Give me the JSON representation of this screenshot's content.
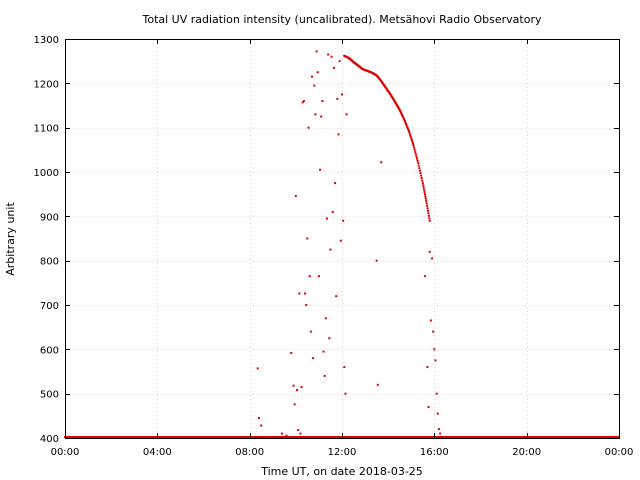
{
  "chart_data": {
    "type": "scatter",
    "title": "Total UV radiation intensity (uncalibrated). Metsähovi Radio Observatory",
    "xlabel": "Time UT, on date 2018-03-25",
    "ylabel": "Arbitrary unit",
    "xlim_hours": [
      0,
      24
    ],
    "ylim": [
      400,
      1300
    ],
    "x_ticks": [
      {
        "value": 0,
        "label": "00:00"
      },
      {
        "value": 4,
        "label": "04:00"
      },
      {
        "value": 8,
        "label": "08:00"
      },
      {
        "value": 12,
        "label": "12:00"
      },
      {
        "value": 16,
        "label": "16:00"
      },
      {
        "value": 20,
        "label": "20:00"
      },
      {
        "value": 24,
        "label": "00:00"
      }
    ],
    "y_ticks": [
      400,
      500,
      600,
      700,
      800,
      900,
      1000,
      1100,
      1200,
      1300
    ],
    "grid": true,
    "marker_color": "#dd0000",
    "series": [
      {
        "baseline": {
          "from_hour": 0,
          "to_hour": 24,
          "value": 400
        },
        "main_curve": [
          [
            12.1,
            1262
          ],
          [
            12.3,
            1257
          ],
          [
            12.5,
            1248
          ],
          [
            12.7,
            1240
          ],
          [
            12.9,
            1232
          ],
          [
            13.1,
            1228
          ],
          [
            13.3,
            1224
          ],
          [
            13.5,
            1218
          ],
          [
            13.7,
            1205
          ],
          [
            13.9,
            1190
          ],
          [
            14.1,
            1175
          ],
          [
            14.3,
            1158
          ],
          [
            14.5,
            1140
          ],
          [
            14.7,
            1118
          ],
          [
            14.9,
            1092
          ],
          [
            15.1,
            1060
          ],
          [
            15.3,
            1020
          ],
          [
            15.5,
            975
          ],
          [
            15.65,
            935
          ],
          [
            15.8,
            890
          ]
        ],
        "scatter_points": [
          [
            8.35,
            557
          ],
          [
            8.4,
            445
          ],
          [
            8.5,
            428
          ],
          [
            9.4,
            410
          ],
          [
            9.6,
            405
          ],
          [
            9.8,
            592
          ],
          [
            9.9,
            518
          ],
          [
            9.95,
            476
          ],
          [
            10.0,
            946
          ],
          [
            10.05,
            508
          ],
          [
            10.1,
            418
          ],
          [
            10.15,
            726
          ],
          [
            10.2,
            410
          ],
          [
            10.25,
            515
          ],
          [
            10.3,
            1157
          ],
          [
            10.35,
            1160
          ],
          [
            10.4,
            726
          ],
          [
            10.45,
            700
          ],
          [
            10.5,
            850
          ],
          [
            10.55,
            1100
          ],
          [
            10.6,
            765
          ],
          [
            10.65,
            640
          ],
          [
            10.7,
            1215
          ],
          [
            10.75,
            580
          ],
          [
            10.8,
            1195
          ],
          [
            10.85,
            1130
          ],
          [
            10.9,
            1272
          ],
          [
            10.95,
            1225
          ],
          [
            11.0,
            765
          ],
          [
            11.05,
            1005
          ],
          [
            11.1,
            1125
          ],
          [
            11.15,
            1160
          ],
          [
            11.2,
            595
          ],
          [
            11.25,
            540
          ],
          [
            11.3,
            670
          ],
          [
            11.35,
            895
          ],
          [
            11.4,
            1265
          ],
          [
            11.45,
            625
          ],
          [
            11.5,
            825
          ],
          [
            11.55,
            1260
          ],
          [
            11.6,
            910
          ],
          [
            11.65,
            1235
          ],
          [
            11.7,
            975
          ],
          [
            11.75,
            720
          ],
          [
            11.8,
            1165
          ],
          [
            11.85,
            1085
          ],
          [
            11.9,
            1250
          ],
          [
            11.95,
            845
          ],
          [
            12.0,
            1175
          ],
          [
            12.05,
            890
          ],
          [
            12.1,
            560
          ],
          [
            12.15,
            500
          ],
          [
            12.2,
            1130
          ],
          [
            13.5,
            800
          ],
          [
            13.55,
            520
          ],
          [
            13.7,
            1022
          ],
          [
            15.6,
            765
          ],
          [
            15.7,
            560
          ],
          [
            15.75,
            470
          ],
          [
            15.8,
            820
          ],
          [
            15.85,
            665
          ],
          [
            15.9,
            805
          ],
          [
            15.95,
            640
          ],
          [
            16.0,
            600
          ],
          [
            16.05,
            575
          ],
          [
            16.1,
            500
          ],
          [
            16.15,
            455
          ],
          [
            16.2,
            420
          ],
          [
            16.25,
            410
          ]
        ]
      }
    ]
  }
}
